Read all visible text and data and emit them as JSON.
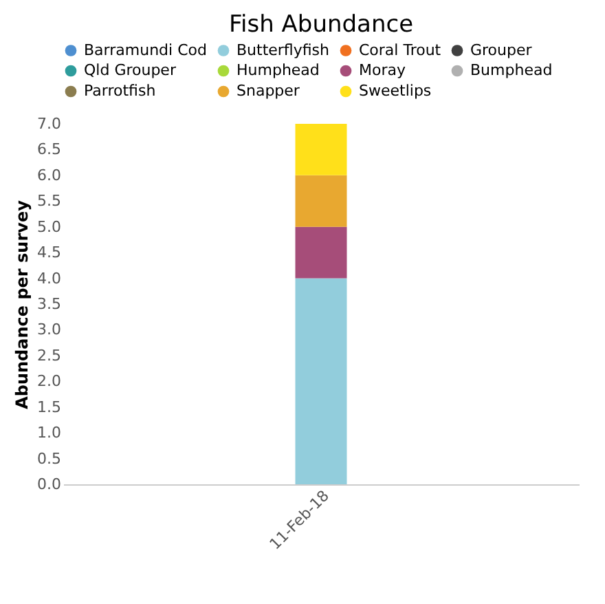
{
  "chart_data": {
    "type": "bar",
    "title": "Fish Abundance",
    "ylabel": "Abundance per survey",
    "categories": [
      "11-Feb-18"
    ],
    "stacked": true,
    "legend": "top",
    "grid": false,
    "ylim": [
      0,
      7
    ],
    "yticks": [
      {
        "value": 0,
        "label": "0.0"
      },
      {
        "value": 0.5,
        "label": "0.5"
      },
      {
        "value": 1,
        "label": "1.0"
      },
      {
        "value": 1.5,
        "label": "1.5"
      },
      {
        "value": 2,
        "label": "2.0"
      },
      {
        "value": 2.5,
        "label": "2.5"
      },
      {
        "value": 3,
        "label": "3.0"
      },
      {
        "value": 3.5,
        "label": "3.5"
      },
      {
        "value": 4,
        "label": "4.0"
      },
      {
        "value": 4.5,
        "label": "4.5"
      },
      {
        "value": 5,
        "label": "5.0"
      },
      {
        "value": 5.5,
        "label": "5.5"
      },
      {
        "value": 6,
        "label": "6.0"
      },
      {
        "value": 6.5,
        "label": "6.5"
      },
      {
        "value": 7,
        "label": "7.0"
      }
    ],
    "series": [
      {
        "name": "Barramundi Cod",
        "color": "#4e8fd0",
        "values": [
          0
        ]
      },
      {
        "name": "Butterflyfish",
        "color": "#92cddc",
        "values": [
          4
        ]
      },
      {
        "name": "Coral Trout",
        "color": "#f07020",
        "values": [
          0
        ]
      },
      {
        "name": "Grouper",
        "color": "#404040",
        "values": [
          0
        ]
      },
      {
        "name": "Qld Grouper",
        "color": "#2e9c9c",
        "values": [
          0
        ]
      },
      {
        "name": "Humphead",
        "color": "#a8d93a",
        "values": [
          0
        ]
      },
      {
        "name": "Moray",
        "color": "#a64d79",
        "values": [
          1
        ]
      },
      {
        "name": "Bumphead",
        "color": "#b0b0b0",
        "values": [
          0
        ]
      },
      {
        "name": "Parrotfish",
        "color": "#8b7d4f",
        "values": [
          0
        ]
      },
      {
        "name": "Snapper",
        "color": "#e8a830",
        "values": [
          1
        ]
      },
      {
        "name": "Sweetlips",
        "color": "#ffe01a",
        "values": [
          1
        ]
      }
    ]
  }
}
